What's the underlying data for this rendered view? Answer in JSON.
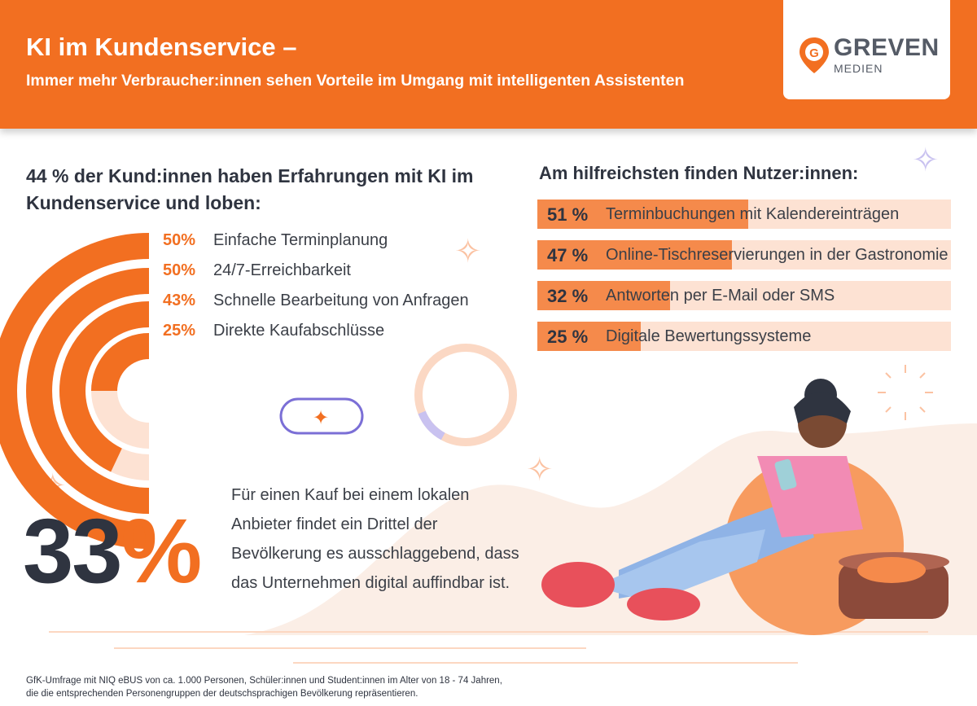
{
  "header": {
    "title": "KI im Kundenservice –",
    "subtitle": "Immer mehr Verbraucher:innen sehen Vorteile im Umgang mit intelligenten Assistenten",
    "logo_name": "GREVEN",
    "logo_sub": "MEDIEN",
    "logo_mark": "G"
  },
  "colors": {
    "orange": "#f26f21",
    "light_orange": "#fde2d3",
    "dark_text": "#2f3440",
    "accent_purple": "#7b6fd6"
  },
  "chart_data": [
    {
      "type": "pie",
      "title": "44 % der Kund:innen haben Erfahrungen mit KI im Kundenservice und loben:",
      "categories": [
        "Einfache Terminplanung",
        "24/7-Erreichbarkeit",
        "Schnelle Bearbeitung von Anfragen",
        "Direkte Kaufabschlüsse"
      ],
      "values": [
        50,
        50,
        43,
        25
      ],
      "labels": [
        "50%",
        "50%",
        "43%",
        "25%"
      ]
    },
    {
      "type": "bar",
      "title": "Am hilfreichsten finden Nutzer:innen:",
      "categories": [
        "Terminbuchungen mit Kalendereinträgen",
        "Online-Tischreservierungen in der Gastronomie",
        "Antworten per E-Mail oder SMS",
        "Digitale Bewertungssysteme"
      ],
      "values": [
        51,
        47,
        32,
        25
      ],
      "labels": [
        "51 %",
        "47 %",
        "32 %",
        "25 %"
      ]
    }
  ],
  "highlight": {
    "number": "33",
    "unit": "%",
    "text": "Für einen Kauf bei einem lokalen Anbieter findet ein Drittel der Bevölkerung es ausschlaggebend, dass das Unternehmen digital auffindbar ist."
  },
  "footnote": {
    "line1": "GfK-Umfrage mit NIQ eBUS von ca. 1.000 Personen, Schüler:innen und Student:innen im Alter von 18 - 74 Jahren,",
    "line2": "die die entsprechenden Personengruppen der deutschsprachigen Bevölkerung repräsentieren."
  }
}
